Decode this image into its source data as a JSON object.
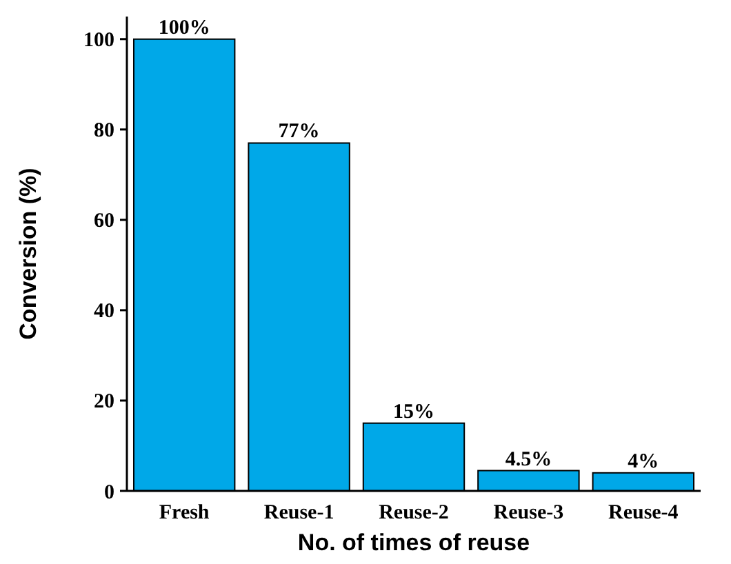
{
  "chart_data": {
    "type": "bar",
    "xlabel": "No. of times of reuse",
    "ylabel": "Conversion (%)",
    "categories": [
      "Fresh",
      "Reuse-1",
      "Reuse-2",
      "Reuse-3",
      "Reuse-4"
    ],
    "values": [
      100,
      77,
      15,
      4.5,
      4
    ],
    "value_labels": [
      "100%",
      "77%",
      "15%",
      "4.5%",
      "4%"
    ],
    "color": "#00a8e8",
    "ylim": [
      0,
      105
    ],
    "yticks": [
      0,
      20,
      40,
      60,
      80,
      100
    ],
    "grid": false
  }
}
